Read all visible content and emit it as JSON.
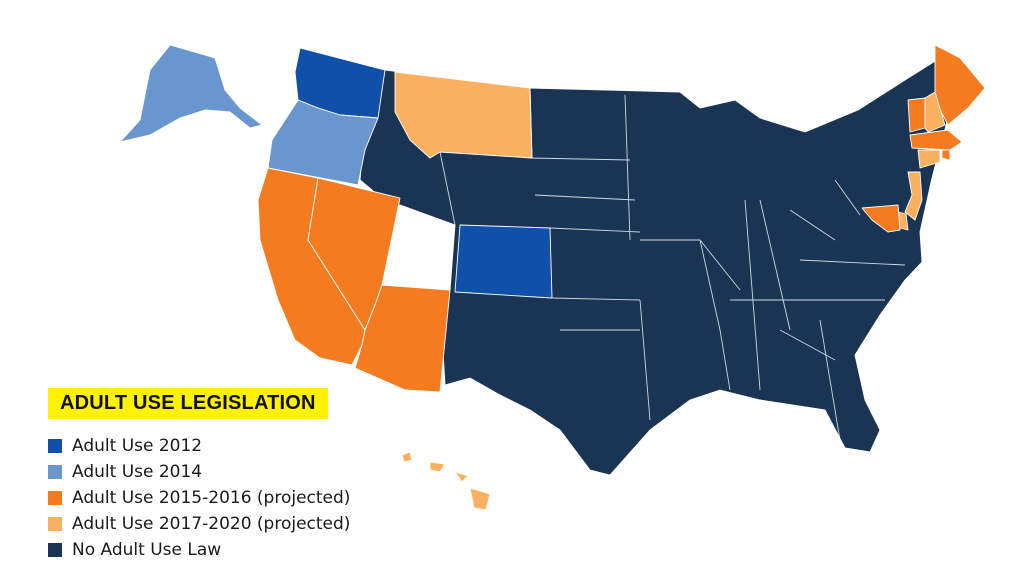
{
  "legend": {
    "title": "ADULT USE LEGISLATION",
    "items": [
      {
        "key": "2012",
        "label": "Adult Use 2012",
        "color": "#1150a8"
      },
      {
        "key": "2014",
        "label": "Adult Use 2014",
        "color": "#6a96d0"
      },
      {
        "key": "2015_2016",
        "label": "Adult Use 2015-2016 (projected)",
        "color": "#f47b20"
      },
      {
        "key": "2017_2020",
        "label": "Adult Use 2017-2020 (projected)",
        "color": "#fbb060"
      },
      {
        "key": "none",
        "label": "No Adult Use Law",
        "color": "#1a3554"
      }
    ]
  },
  "states": {
    "2012": [
      "Washington",
      "Colorado"
    ],
    "2014": [
      "Alaska",
      "Oregon"
    ],
    "2015_2016": [
      "California",
      "Nevada",
      "Arizona",
      "Maine",
      "Vermont",
      "Massachusetts",
      "Maryland",
      "Rhode Island"
    ],
    "2017_2020": [
      "Montana",
      "Hawaii",
      "New Hampshire",
      "Connecticut",
      "New Jersey",
      "Delaware"
    ]
  }
}
